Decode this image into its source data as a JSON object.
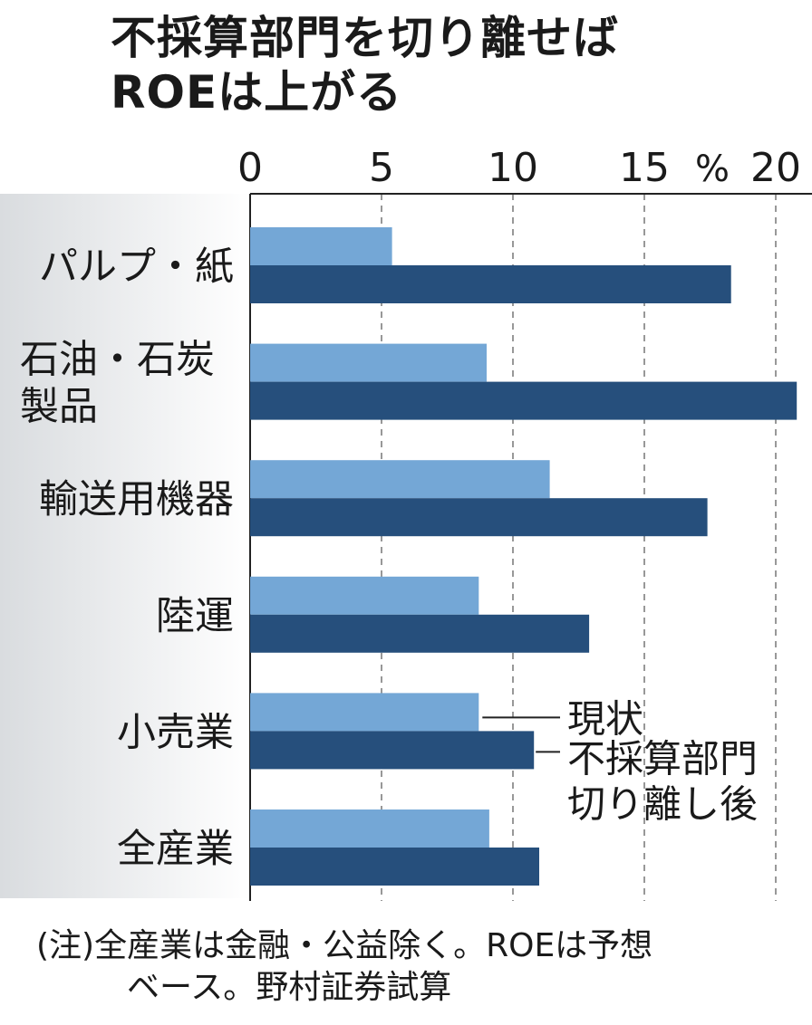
{
  "title_lines": [
    "不採算部門を切り離せば",
    "ROEは上がる"
  ],
  "chart_data": {
    "type": "bar",
    "orientation": "horizontal",
    "unit": "%",
    "xlim": [
      0,
      20.8
    ],
    "ticks": [
      0,
      5,
      10,
      15,
      20
    ],
    "grid": true,
    "categories": [
      [
        "パルプ・紙"
      ],
      [
        "石油・石炭",
        "製品"
      ],
      [
        "輸送用機器"
      ],
      [
        "陸運"
      ],
      [
        "小売業"
      ],
      [
        "全産業"
      ]
    ],
    "series": [
      {
        "name": "現状",
        "color": "#74a7d6",
        "values": [
          5.4,
          9.0,
          11.4,
          8.7,
          8.7,
          9.1
        ]
      },
      {
        "name": "不採算部門切り離し後",
        "name_lines": [
          "不採算部門",
          "切り離し後"
        ],
        "color": "#264f7c",
        "values": [
          18.3,
          20.8,
          17.4,
          12.9,
          10.8,
          11.0
        ]
      }
    ]
  },
  "note_lines": [
    "(注)全産業は金融・公益除く。ROEは予想",
    "ベース。野村証券試算"
  ]
}
